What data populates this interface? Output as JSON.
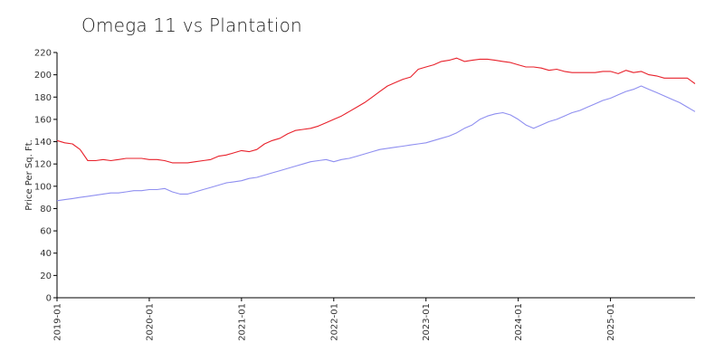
{
  "chart_data": {
    "type": "line",
    "title": "Omega 11 vs Plantation",
    "xlabel": "",
    "ylabel": "Price Per Sq. Ft.",
    "ylim": [
      0,
      220
    ],
    "yticks": [
      0,
      20,
      40,
      60,
      80,
      100,
      120,
      140,
      160,
      180,
      200,
      220
    ],
    "xlim": [
      "2019-01",
      "2025-12"
    ],
    "xticks": [
      "2019-01",
      "2020-01",
      "2021-01",
      "2022-01",
      "2023-01",
      "2024-01",
      "2025-01"
    ],
    "grid": false,
    "legend": "none",
    "x": [
      "2019-01",
      "2019-02",
      "2019-03",
      "2019-04",
      "2019-05",
      "2019-06",
      "2019-07",
      "2019-08",
      "2019-09",
      "2019-10",
      "2019-11",
      "2019-12",
      "2020-01",
      "2020-02",
      "2020-03",
      "2020-04",
      "2020-05",
      "2020-06",
      "2020-07",
      "2020-08",
      "2020-09",
      "2020-10",
      "2020-11",
      "2020-12",
      "2021-01",
      "2021-02",
      "2021-03",
      "2021-04",
      "2021-05",
      "2021-06",
      "2021-07",
      "2021-08",
      "2021-09",
      "2021-10",
      "2021-11",
      "2021-12",
      "2022-01",
      "2022-02",
      "2022-03",
      "2022-04",
      "2022-05",
      "2022-06",
      "2022-07",
      "2022-08",
      "2022-09",
      "2022-10",
      "2022-11",
      "2022-12",
      "2023-01",
      "2023-02",
      "2023-03",
      "2023-04",
      "2023-05",
      "2023-06",
      "2023-07",
      "2023-08",
      "2023-09",
      "2023-10",
      "2023-11",
      "2023-12",
      "2024-01",
      "2024-02",
      "2024-03",
      "2024-04",
      "2024-05",
      "2024-06",
      "2024-07",
      "2024-08",
      "2024-09",
      "2024-10",
      "2024-11",
      "2024-12",
      "2025-01",
      "2025-02",
      "2025-03",
      "2025-04",
      "2025-05",
      "2025-06",
      "2025-07",
      "2025-08",
      "2025-09",
      "2025-10",
      "2025-11",
      "2025-12"
    ],
    "series": [
      {
        "color": "#e8212b",
        "values": [
          141,
          139,
          138,
          133,
          123,
          123,
          124,
          123,
          124,
          125,
          125,
          125,
          124,
          124,
          123,
          121,
          121,
          121,
          122,
          123,
          124,
          127,
          128,
          130,
          132,
          131,
          133,
          138,
          141,
          143,
          147,
          150,
          151,
          152,
          154,
          157,
          160,
          163,
          167,
          171,
          175,
          180,
          185,
          190,
          193,
          196,
          198,
          205,
          207,
          209,
          212,
          213,
          215,
          212,
          213,
          214,
          214,
          213,
          212,
          211,
          209,
          207,
          207,
          206,
          204,
          205,
          203,
          202,
          202,
          202,
          202,
          203,
          203,
          201,
          204,
          202,
          203,
          200,
          199,
          197,
          197,
          197,
          197,
          192
        ]
      },
      {
        "color": "#8f8ff0",
        "values": [
          87,
          88,
          89,
          90,
          91,
          92,
          93,
          94,
          94,
          95,
          96,
          96,
          97,
          97,
          98,
          95,
          93,
          93,
          95,
          97,
          99,
          101,
          103,
          104,
          105,
          107,
          108,
          110,
          112,
          114,
          116,
          118,
          120,
          122,
          123,
          124,
          122,
          124,
          125,
          127,
          129,
          131,
          133,
          134,
          135,
          136,
          137,
          138,
          139,
          141,
          143,
          145,
          148,
          152,
          155,
          160,
          163,
          165,
          166,
          164,
          160,
          155,
          152,
          155,
          158,
          160,
          163,
          166,
          168,
          171,
          174,
          177,
          179,
          182,
          185,
          187,
          190,
          187,
          184,
          181,
          178,
          175,
          171,
          167
        ]
      }
    ]
  }
}
